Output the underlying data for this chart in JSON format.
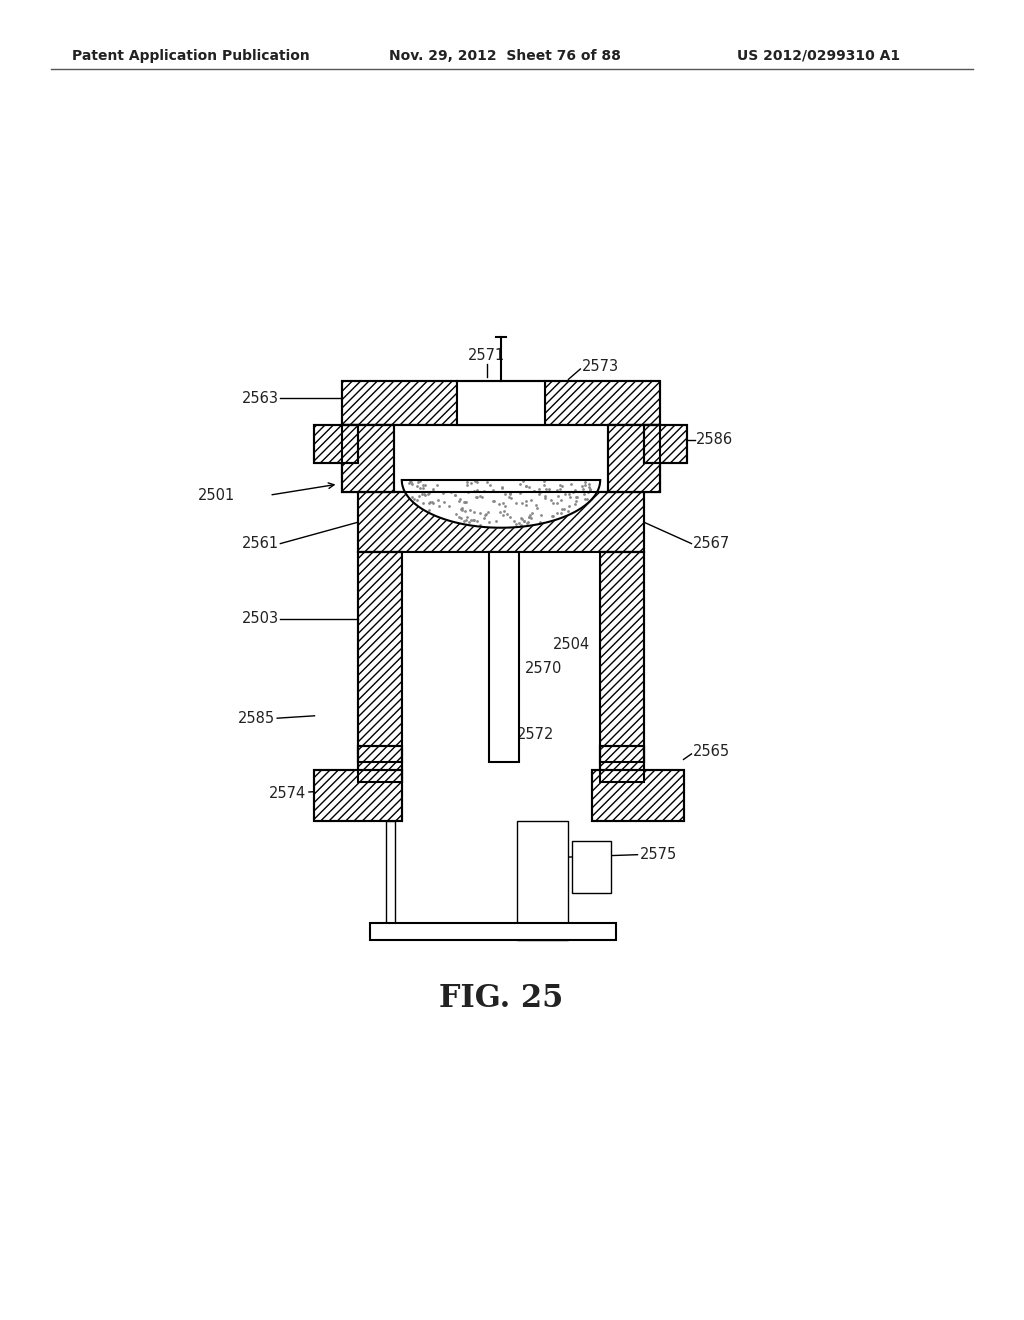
{
  "title": "FIG. 25",
  "header_left": "Patent Application Publication",
  "header_mid": "Nov. 29, 2012  Sheet 76 of 88",
  "header_right": "US 2012/0299310 A1",
  "bg_color": "#ffffff",
  "line_color": "#000000",
  "hatch_color": "#555555"
}
